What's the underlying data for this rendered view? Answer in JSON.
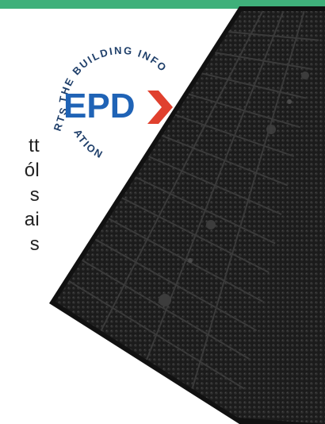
{
  "colors": {
    "top_bar": "#3fb07a",
    "mat_body": "#1e1e1e",
    "mat_edge": "#111111",
    "mat_grid": "#3a3a3a",
    "epd_blue": "#1f63b6",
    "epd_red": "#e0402e",
    "badge_text": "#1f3f6a"
  },
  "text_fragments": [
    "tt",
    "ól",
    "s",
    "ai",
    "s"
  ],
  "badge": {
    "logo_text": "EPD",
    "ring_text_top": "THE BUILDING INFO",
    "ring_text_bottom": "ATION",
    "ring_text_left": "RTS ·",
    "icon": "chevron-right-icon"
  },
  "product": {
    "icon": "rubber-mat-image"
  }
}
